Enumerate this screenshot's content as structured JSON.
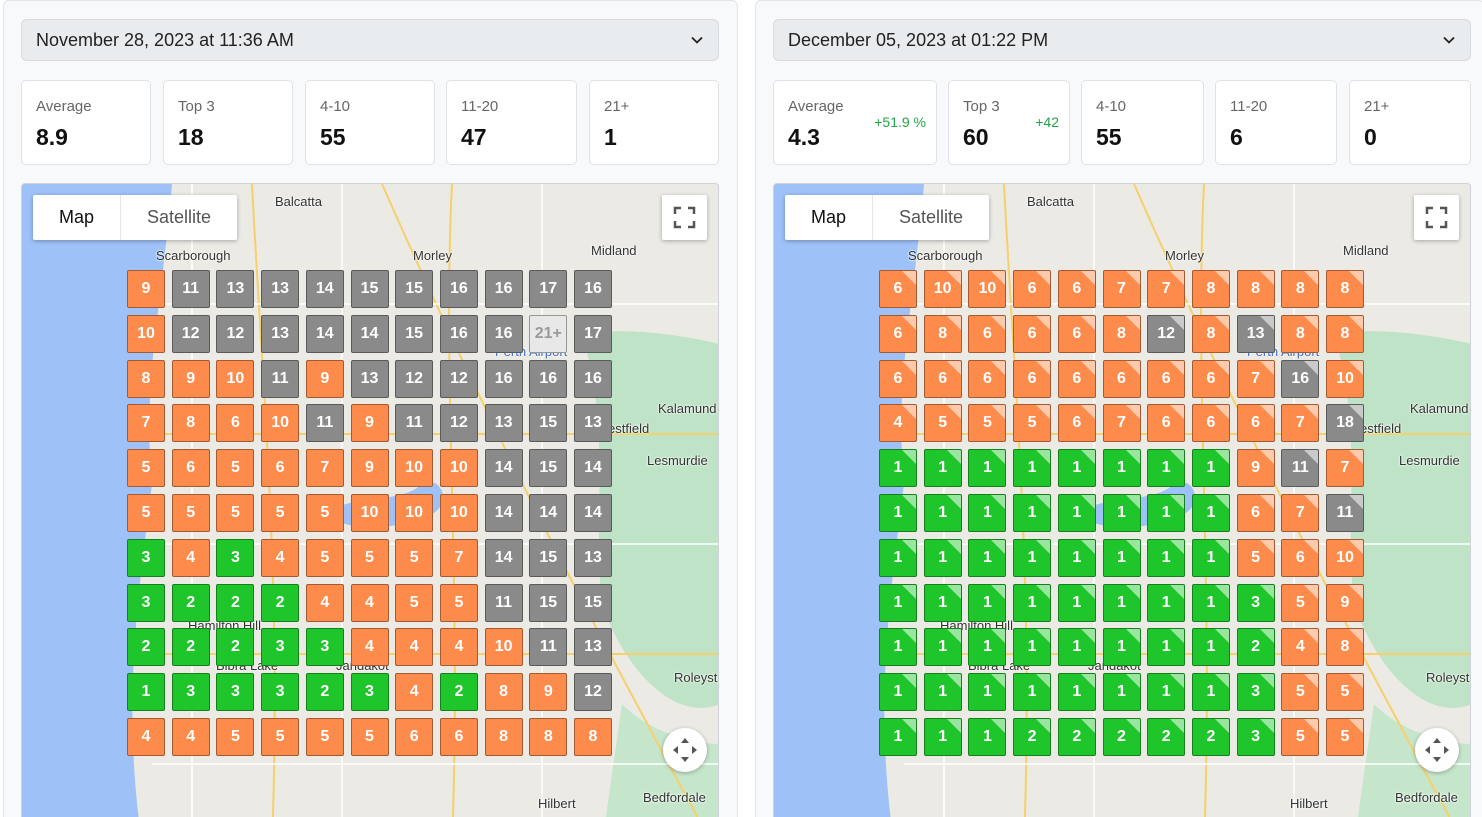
{
  "panels": [
    {
      "date": "November 28, 2023 at 11:36 AM",
      "stats": [
        {
          "label": "Average",
          "value": 8.9
        },
        {
          "label": "Top 3",
          "value": 18
        },
        {
          "label": "4-10",
          "value": 55
        },
        {
          "label": "11-20",
          "value": 47
        },
        {
          "label": "21+",
          "value": 1
        }
      ],
      "map": {
        "buttons": [
          "Map",
          "Satellite"
        ],
        "places": [
          "Balcatta",
          "Scarborough",
          "Morley",
          "Midland",
          "Perth Airport",
          "Kalamund",
          "estfield",
          "Lesmurdie",
          "Hamilton Hill",
          "Bibra Lake",
          "Jandakot",
          "Roleyst",
          "Hilbert",
          "Bedfordale"
        ],
        "grid": [
          [
            9,
            11,
            13,
            13,
            14,
            15,
            15,
            16,
            16,
            17,
            16
          ],
          [
            10,
            12,
            12,
            13,
            14,
            14,
            15,
            16,
            16,
            "21+",
            17
          ],
          [
            8,
            9,
            10,
            11,
            9,
            13,
            12,
            12,
            16,
            16,
            16
          ],
          [
            7,
            8,
            6,
            10,
            11,
            9,
            11,
            12,
            13,
            15,
            13
          ],
          [
            5,
            6,
            5,
            6,
            7,
            9,
            10,
            10,
            14,
            15,
            14
          ],
          [
            5,
            5,
            5,
            5,
            5,
            10,
            10,
            10,
            14,
            14,
            14
          ],
          [
            3,
            4,
            3,
            4,
            5,
            5,
            5,
            7,
            14,
            15,
            13
          ],
          [
            3,
            2,
            2,
            2,
            4,
            4,
            5,
            5,
            11,
            15,
            15
          ],
          [
            2,
            2,
            2,
            3,
            3,
            4,
            4,
            4,
            10,
            11,
            13
          ],
          [
            1,
            3,
            3,
            3,
            2,
            3,
            4,
            2,
            8,
            9,
            12
          ],
          [
            4,
            4,
            5,
            5,
            5,
            5,
            6,
            6,
            8,
            8,
            8
          ]
        ]
      }
    },
    {
      "date": "December 05, 2023 at 01:22 PM",
      "stats": [
        {
          "label": "Average",
          "value": 4.3,
          "change": "+51.9 %"
        },
        {
          "label": "Top 3",
          "value": 60,
          "change": "+42"
        },
        {
          "label": "4-10",
          "value": 55
        },
        {
          "label": "11-20",
          "value": 6
        },
        {
          "label": "21+",
          "value": 0
        }
      ],
      "map": {
        "buttons": [
          "Map",
          "Satellite"
        ],
        "places": [
          "Balcatta",
          "Scarborough",
          "Morley",
          "Midland",
          "Perth Airport",
          "Kalamund",
          "estfield",
          "Lesmurdie",
          "Hamilton Hill",
          "Bibra Lake",
          "Jandakot",
          "Roleyst",
          "Hilbert",
          "Bedfordale"
        ],
        "grid": [
          [
            6,
            10,
            10,
            6,
            6,
            7,
            7,
            8,
            8,
            8,
            8
          ],
          [
            6,
            8,
            6,
            6,
            6,
            8,
            12,
            8,
            13,
            8,
            8
          ],
          [
            6,
            6,
            6,
            6,
            6,
            6,
            6,
            6,
            7,
            16,
            10
          ],
          [
            4,
            5,
            5,
            5,
            6,
            7,
            6,
            6,
            6,
            7,
            18
          ],
          [
            1,
            1,
            1,
            1,
            1,
            1,
            1,
            1,
            9,
            11,
            7
          ],
          [
            1,
            1,
            1,
            1,
            1,
            1,
            1,
            1,
            6,
            7,
            11
          ],
          [
            1,
            1,
            1,
            1,
            1,
            1,
            1,
            1,
            5,
            6,
            10
          ],
          [
            1,
            1,
            1,
            1,
            1,
            1,
            1,
            1,
            3,
            5,
            9
          ],
          [
            1,
            1,
            1,
            1,
            1,
            1,
            1,
            1,
            2,
            4,
            8
          ],
          [
            1,
            1,
            1,
            1,
            1,
            1,
            1,
            1,
            3,
            5,
            5
          ],
          [
            1,
            1,
            1,
            2,
            2,
            2,
            2,
            2,
            3,
            5,
            5
          ]
        ]
      }
    }
  ]
}
